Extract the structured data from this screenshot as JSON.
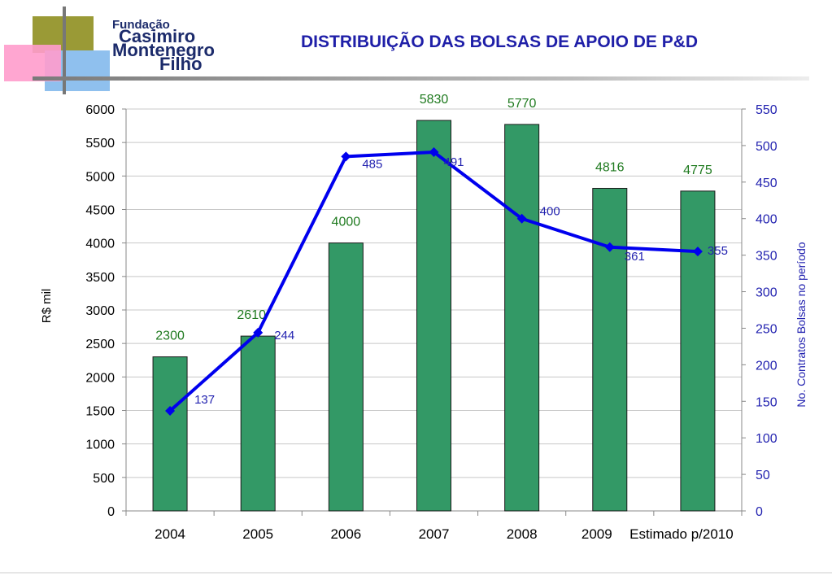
{
  "slide": {
    "title": "DISTRIBUIÇÃO DAS  BOLSAS DE APOIO DE P&D",
    "logo": {
      "line1": "Fundação",
      "line2": "Casimiro",
      "line3": "Montenegro",
      "line4": "Filho"
    }
  },
  "colors": {
    "bars": "#339966",
    "bar_labels": "#1f7a1f",
    "line": "#0000ee",
    "line_labels": "#2323b0",
    "right_axis_text": "#2323b0",
    "title": "#1f1fa8"
  },
  "chart_data": {
    "type": "bar",
    "combo": "bar + line (dual axis)",
    "categories": [
      "2004",
      "2005",
      "2006",
      "2007",
      "2008",
      "2009",
      "Estimado p/2010"
    ],
    "series": [
      {
        "axis": "left",
        "type": "bar",
        "values": [
          2300,
          2610,
          4000,
          5830,
          5770,
          4816,
          4775
        ]
      },
      {
        "axis": "right",
        "type": "line",
        "values": [
          137,
          244,
          485,
          491,
          400,
          361,
          355
        ]
      }
    ],
    "ylabel": "R$ mil",
    "y2label": "No. Contratos Bolsas no período",
    "ylim": [
      0,
      6000
    ],
    "y_ticks": [
      "0",
      "500",
      "1000",
      "1500",
      "2000",
      "2500",
      "3000",
      "3500",
      "4000",
      "4500",
      "5000",
      "5500",
      "6000"
    ],
    "y2lim": [
      0,
      550
    ],
    "y2_ticks": [
      "0",
      "50",
      "100",
      "150",
      "200",
      "250",
      "300",
      "350",
      "400",
      "450",
      "500",
      "550"
    ],
    "grid": true,
    "legend": "none"
  }
}
